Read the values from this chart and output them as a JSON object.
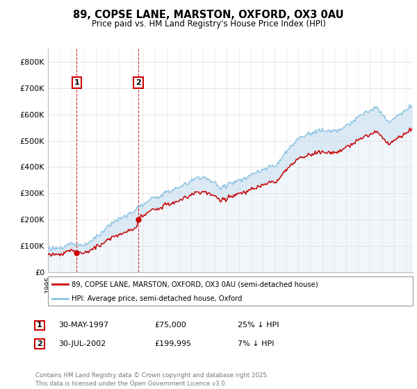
{
  "title_line1": "89, COPSE LANE, MARSTON, OXFORD, OX3 0AU",
  "title_line2": "Price paid vs. HM Land Registry's House Price Index (HPI)",
  "y_min": 0,
  "y_max": 850000,
  "yticks": [
    0,
    100000,
    200000,
    300000,
    400000,
    500000,
    600000,
    700000,
    800000
  ],
  "ytick_labels": [
    "£0",
    "£100K",
    "£200K",
    "£300K",
    "£400K",
    "£500K",
    "£600K",
    "£700K",
    "£800K"
  ],
  "purchase1_date": "30-MAY-1997",
  "purchase1_price": 75000,
  "purchase1_hpi_pct": "25% ↓ HPI",
  "purchase1_year": 1997.4,
  "purchase2_date": "30-JUL-2002",
  "purchase2_price": 199995,
  "purchase2_hpi_pct": "7% ↓ HPI",
  "purchase2_year": 2002.58,
  "legend_line1": "89, COPSE LANE, MARSTON, OXFORD, OX3 0AU (semi-detached house)",
  "legend_line2": "HPI: Average price, semi-detached house, Oxford",
  "footer": "Contains HM Land Registry data © Crown copyright and database right 2025.\nThis data is licensed under the Open Government Licence v3.0.",
  "line_color_red": "#cc0000",
  "line_color_blue": "#89c4e1",
  "fill_color_blue": "#c8dff0",
  "vline_color": "#cc0000",
  "label_box_color": "#cc0000",
  "grid_color": "#e0e0e0"
}
